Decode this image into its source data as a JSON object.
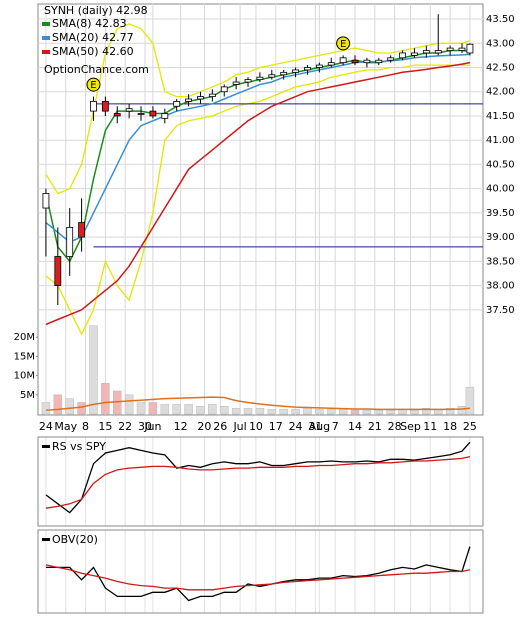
{
  "chart_data": {
    "type": "candlestick",
    "title": "SYNH (daily) 42.98",
    "watermark": "OptionChance.com",
    "x": [
      0,
      3,
      6,
      9,
      12,
      15,
      18,
      21,
      24,
      27,
      30,
      33,
      36,
      39,
      42,
      45,
      48,
      51,
      54,
      57,
      60,
      63,
      66,
      69,
      72,
      75,
      78,
      81,
      84,
      87,
      90,
      93,
      96,
      99,
      102,
      105,
      107
    ],
    "xlim": [
      -2,
      110.3
    ],
    "xticks": [
      {
        "value": 0,
        "label": "24"
      },
      {
        "value": 5,
        "label": "May"
      },
      {
        "value": 10,
        "label": "8"
      },
      {
        "value": 15,
        "label": "15"
      },
      {
        "value": 20,
        "label": "22"
      },
      {
        "value": 25,
        "label": "30"
      },
      {
        "value": 27,
        "label": "Jun"
      },
      {
        "value": 34,
        "label": "12"
      },
      {
        "value": 40,
        "label": "20"
      },
      {
        "value": 44,
        "label": "26"
      },
      {
        "value": 49,
        "label": "Jul"
      },
      {
        "value": 53,
        "label": "10"
      },
      {
        "value": 58,
        "label": "17"
      },
      {
        "value": 63,
        "label": "24"
      },
      {
        "value": 68,
        "label": "31"
      },
      {
        "value": 69,
        "label": "Aug"
      },
      {
        "value": 73,
        "label": "7"
      },
      {
        "value": 78,
        "label": "14"
      },
      {
        "value": 83,
        "label": "21"
      },
      {
        "value": 88,
        "label": "28"
      },
      {
        "value": 92,
        "label": "Sep"
      },
      {
        "value": 97,
        "label": "11"
      },
      {
        "value": 102,
        "label": "18"
      },
      {
        "value": 107,
        "label": "25"
      }
    ],
    "ylim": [
      35.33,
      43.81
    ],
    "yticks": [
      {
        "value": 37.5,
        "label": "37.50"
      },
      {
        "value": 38,
        "label": "38.00"
      },
      {
        "value": 38.5,
        "label": "38.50"
      },
      {
        "value": 39,
        "label": "39.00"
      },
      {
        "value": 39.5,
        "label": "39.50"
      },
      {
        "value": 40,
        "label": "40.00"
      },
      {
        "value": 40.5,
        "label": "40.50"
      },
      {
        "value": 41,
        "label": "41.00"
      },
      {
        "value": 41.5,
        "label": "41.50"
      },
      {
        "value": 42,
        "label": "42.00"
      },
      {
        "value": 42.5,
        "label": "42.50"
      },
      {
        "value": 43,
        "label": "43.00"
      },
      {
        "value": 43.5,
        "label": "43.50"
      }
    ],
    "grid": true,
    "candles": {
      "up_color": "#ffffff",
      "down_color": "#d81e1e",
      "open": [
        39.6,
        38.6,
        38.6,
        39.3,
        41.6,
        41.8,
        41.55,
        41.6,
        41.55,
        41.6,
        41.45,
        41.7,
        41.8,
        41.85,
        41.9,
        42.0,
        42.15,
        42.2,
        42.25,
        42.3,
        42.35,
        42.4,
        42.45,
        42.5,
        42.55,
        42.6,
        42.65,
        42.6,
        42.6,
        42.65,
        42.7,
        42.75,
        42.8,
        42.8,
        42.85,
        42.85,
        42.8
      ],
      "high": [
        40.0,
        39.2,
        39.6,
        39.8,
        41.9,
        41.9,
        41.7,
        41.75,
        41.7,
        41.7,
        41.65,
        41.85,
        41.95,
        42.0,
        42.05,
        42.15,
        42.3,
        42.3,
        42.4,
        42.45,
        42.45,
        42.5,
        42.55,
        42.6,
        42.7,
        42.75,
        42.75,
        42.7,
        42.7,
        42.75,
        42.85,
        42.9,
        42.95,
        43.6,
        42.95,
        43.0,
        43.0
      ],
      "low": [
        38.6,
        37.6,
        38.2,
        38.7,
        41.4,
        41.5,
        41.35,
        41.45,
        41.4,
        41.45,
        41.35,
        41.6,
        41.7,
        41.75,
        41.8,
        41.9,
        42.05,
        42.1,
        42.2,
        42.25,
        42.25,
        42.3,
        42.35,
        42.4,
        42.5,
        42.55,
        42.55,
        42.5,
        42.55,
        42.6,
        42.65,
        42.7,
        42.7,
        42.75,
        42.75,
        42.8,
        42.75
      ],
      "close": [
        39.9,
        38.0,
        39.2,
        39.0,
        41.8,
        41.6,
        41.5,
        41.65,
        41.55,
        41.5,
        41.55,
        41.8,
        41.85,
        41.9,
        41.95,
        42.1,
        42.2,
        42.25,
        42.3,
        42.35,
        42.4,
        42.45,
        42.5,
        42.55,
        42.6,
        42.7,
        42.6,
        42.65,
        42.65,
        42.7,
        42.8,
        42.8,
        42.85,
        42.85,
        42.9,
        42.9,
        42.98
      ]
    },
    "series": [
      {
        "name": "SMA(8) 42.83",
        "color": "#1a8a1a",
        "values": [
          39.9,
          38.8,
          38.5,
          39.0,
          40.2,
          41.2,
          41.6,
          41.6,
          41.6,
          41.55,
          41.55,
          41.7,
          41.8,
          41.85,
          41.9,
          42.05,
          42.15,
          42.2,
          42.25,
          42.3,
          42.35,
          42.4,
          42.45,
          42.5,
          42.55,
          42.6,
          42.65,
          42.6,
          42.6,
          42.65,
          42.7,
          42.75,
          42.8,
          42.8,
          42.85,
          42.85,
          42.83
        ]
      },
      {
        "name": "SMA(20) 42.77",
        "color": "#3a8fd0",
        "values": [
          39.3,
          39.1,
          38.9,
          39.0,
          39.5,
          40.0,
          40.5,
          41.0,
          41.3,
          41.4,
          41.5,
          41.6,
          41.65,
          41.7,
          41.75,
          41.85,
          41.95,
          42.05,
          42.15,
          42.2,
          42.3,
          42.35,
          42.4,
          42.45,
          42.5,
          42.55,
          42.6,
          42.62,
          42.62,
          42.64,
          42.66,
          42.7,
          42.72,
          42.74,
          42.75,
          42.76,
          42.77
        ]
      },
      {
        "name": "SMA(50) 42.60",
        "color": "#d01818",
        "values": [
          37.2,
          37.3,
          37.4,
          37.5,
          37.7,
          37.9,
          38.1,
          38.4,
          38.8,
          39.2,
          39.6,
          40.0,
          40.4,
          40.6,
          40.8,
          41.0,
          41.2,
          41.4,
          41.55,
          41.7,
          41.8,
          41.9,
          42.0,
          42.05,
          42.1,
          42.15,
          42.2,
          42.25,
          42.3,
          42.35,
          42.4,
          42.43,
          42.46,
          42.5,
          42.53,
          42.57,
          42.6
        ]
      }
    ],
    "bands": {
      "color": "#e6e600",
      "upper": [
        40.3,
        39.9,
        40.0,
        40.5,
        41.6,
        42.8,
        43.3,
        43.4,
        43.3,
        43.0,
        42.0,
        41.9,
        41.9,
        42.0,
        42.1,
        42.2,
        42.35,
        42.4,
        42.5,
        42.55,
        42.6,
        42.65,
        42.7,
        42.75,
        42.8,
        42.85,
        42.9,
        42.85,
        42.8,
        42.8,
        42.85,
        42.9,
        42.95,
        43.0,
        43.0,
        43.0,
        43.05
      ],
      "lower": [
        38.2,
        38.0,
        37.5,
        37.0,
        37.5,
        38.5,
        38.0,
        37.7,
        38.5,
        39.5,
        41.0,
        41.3,
        41.4,
        41.45,
        41.5,
        41.6,
        41.7,
        41.75,
        41.8,
        41.9,
        42.0,
        42.1,
        42.15,
        42.2,
        42.3,
        42.35,
        42.4,
        42.45,
        42.45,
        42.5,
        42.5,
        42.55,
        42.55,
        42.55,
        42.55,
        42.55,
        42.55
      ]
    },
    "hlines": {
      "color": "#1a1a8a",
      "from_x": 12,
      "values": [
        41.75,
        38.8
      ]
    },
    "events": [
      {
        "x": 12,
        "label": "E"
      },
      {
        "x": 75,
        "label": "E"
      }
    ],
    "volume": {
      "up_color": "#dcdcdc",
      "down_color": "#f2b6b6",
      "avg_color": "#e0701a",
      "ylim": [
        0,
        25
      ],
      "yticks": [
        {
          "value": 5,
          "label": "5M"
        },
        {
          "value": 10,
          "label": "10M"
        },
        {
          "value": 15,
          "label": "15M"
        },
        {
          "value": 20,
          "label": "20M"
        }
      ],
      "values": [
        3,
        5,
        4,
        3,
        23,
        8,
        6,
        5,
        3,
        3,
        2.5,
        2.5,
        2.5,
        2,
        2.5,
        2,
        1.5,
        1.5,
        1.5,
        1.2,
        1.2,
        1.2,
        1.5,
        1.2,
        1.2,
        1.2,
        1,
        1,
        1,
        1,
        1.2,
        1,
        1.5,
        1.2,
        1.5,
        2,
        7
      ],
      "average": [
        1,
        1.2,
        1.5,
        1.8,
        2.5,
        3,
        3.2,
        3.4,
        3.6,
        3.8,
        4,
        4.1,
        4.2,
        4.3,
        4.4,
        4.3,
        3.5,
        3,
        2.6,
        2.3,
        2,
        1.8,
        1.7,
        1.6,
        1.5,
        1.4,
        1.3,
        1.3,
        1.2,
        1.2,
        1.2,
        1.2,
        1.2,
        1.2,
        1.2,
        1.3,
        1.5
      ]
    },
    "indicators": [
      {
        "title": "RS vs SPY",
        "ylim": [
          0,
          100
        ],
        "series": [
          {
            "color": "#000000",
            "values": [
              35,
              25,
              15,
              30,
              70,
              82,
              85,
              88,
              85,
              82,
              80,
              65,
              68,
              66,
              70,
              72,
              70,
              70,
              72,
              68,
              68,
              70,
              72,
              72,
              73,
              72,
              72,
              73,
              72,
              75,
              75,
              74,
              76,
              78,
              80,
              84,
              94
            ]
          },
          {
            "color": "#d01818",
            "values": [
              20,
              22,
              25,
              30,
              48,
              58,
              63,
              65,
              66,
              67,
              67,
              66,
              64,
              63,
              63,
              64,
              65,
              65,
              66,
              66,
              66,
              67,
              67,
              68,
              68,
              69,
              70,
              70,
              71,
              71,
              72,
              73,
              73,
              74,
              75,
              76,
              78
            ]
          }
        ]
      },
      {
        "title": "OBV(20)",
        "ylim": [
          0,
          100
        ],
        "series": [
          {
            "color": "#000000",
            "values": [
              55,
              55,
              55,
              40,
              55,
              30,
              20,
              20,
              20,
              25,
              25,
              30,
              15,
              20,
              20,
              25,
              25,
              35,
              32,
              35,
              38,
              40,
              40,
              42,
              42,
              45,
              44,
              45,
              48,
              52,
              55,
              53,
              58,
              55,
              52,
              50,
              80
            ]
          },
          {
            "color": "#d01818",
            "values": [
              58,
              55,
              52,
              48,
              45,
              42,
              38,
              35,
              33,
              32,
              30,
              30,
              28,
              28,
              28,
              30,
              32,
              33,
              34,
              35,
              37,
              38,
              39,
              40,
              41,
              42,
              43,
              44,
              45,
              46,
              47,
              48,
              48,
              49,
              50,
              50,
              52
            ]
          }
        ]
      }
    ]
  }
}
